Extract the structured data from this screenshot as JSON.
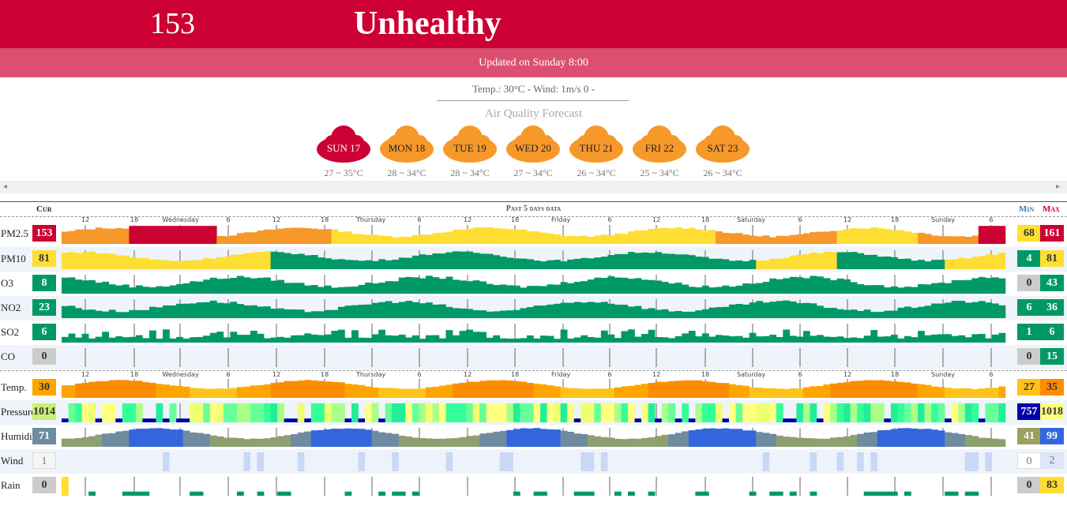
{
  "header": {
    "aqi": "153",
    "level": "Unhealthy",
    "updated": "Updated on Sunday 8:00",
    "weather": "Temp.: 30°C - Wind: 1m/s 0 -",
    "forecast_title": "Air Quality Forecast"
  },
  "forecast": [
    {
      "day": "SUN 17",
      "range": "27 ~ 35°C",
      "color": "#cc0033"
    },
    {
      "day": "MON 18",
      "range": "28 ~ 34°C",
      "color": "#f7982a"
    },
    {
      "day": "TUE 19",
      "range": "28 ~ 34°C",
      "color": "#f7982a"
    },
    {
      "day": "WED 20",
      "range": "27 ~ 34°C",
      "color": "#f7982a"
    },
    {
      "day": "THU 21",
      "range": "26 ~ 34°C",
      "color": "#f7982a"
    },
    {
      "day": "FRI 22",
      "range": "25 ~ 34°C",
      "color": "#f7982a"
    },
    {
      "day": "SAT 23",
      "range": "26 ~ 34°C",
      "color": "#f7982a"
    }
  ],
  "table": {
    "cur_label": "Cur",
    "past_label": "Past 5 days data",
    "min_label": "Min",
    "max_label": "Max"
  },
  "time_labels": [
    "12",
    "18",
    "Wednesday",
    "6",
    "12",
    "18",
    "Thursday",
    "6",
    "12",
    "18",
    "Friday",
    "6",
    "12",
    "18",
    "Saturday",
    "6",
    "12",
    "18",
    "Sunday",
    "6"
  ],
  "scroll": {
    "left": "◂",
    "right": "▸"
  },
  "rows": [
    {
      "key": "pm25",
      "label": "PM2.5",
      "cur": "153",
      "min": "68",
      "max": "161",
      "cur_color": "#cc0033",
      "min_color": "#ffde33",
      "max_color": "#cc0033"
    },
    {
      "key": "pm10",
      "label": "PM10",
      "cur": "81",
      "min": "4",
      "max": "81",
      "cur_color": "#ffde33",
      "min_color": "#009966",
      "max_color": "#ffde33"
    },
    {
      "key": "o3",
      "label": "O3",
      "cur": "8",
      "min": "0",
      "max": "43",
      "cur_color": "#009966",
      "min_color": "#cccccc",
      "max_color": "#009966"
    },
    {
      "key": "no2",
      "label": "NO2",
      "cur": "23",
      "min": "6",
      "max": "36",
      "cur_color": "#009966",
      "min_color": "#009966",
      "max_color": "#009966"
    },
    {
      "key": "so2",
      "label": "SO2",
      "cur": "6",
      "min": "1",
      "max": "6",
      "cur_color": "#009966",
      "min_color": "#009966",
      "max_color": "#009966"
    },
    {
      "key": "co",
      "label": "CO",
      "cur": "0",
      "min": "0",
      "max": "15",
      "cur_color": "#cccccc",
      "min_color": "#cccccc",
      "max_color": "#009966"
    },
    {
      "key": "temp",
      "label": "Temp.",
      "cur": "30",
      "min": "27",
      "max": "35",
      "cur_color": "#ffa500",
      "min_color": "#ffc21a",
      "max_color": "#ff8c00"
    },
    {
      "key": "pressure",
      "label": "Pressure",
      "cur": "1014",
      "min": "757",
      "max": "1018",
      "cur_color": "#c8f078",
      "min_color": "#0000aa",
      "max_color": "#ffff80"
    },
    {
      "key": "humidity",
      "label": "Humidity",
      "cur": "71",
      "min": "41",
      "max": "99",
      "cur_color": "#6e8ba0",
      "min_color": "#9aa060",
      "max_color": "#3366dd"
    },
    {
      "key": "wind",
      "label": "Wind",
      "cur": "1",
      "min": "0",
      "max": "2",
      "cur_color": "#f5f5f5",
      "min_color": "#ffffff",
      "max_color": "#dde6f5"
    },
    {
      "key": "rain",
      "label": "Rain",
      "cur": "0",
      "min": "0",
      "max": "83",
      "cur_color": "#cccccc",
      "min_color": "#cccccc",
      "max_color": "#ffde33"
    }
  ]
}
